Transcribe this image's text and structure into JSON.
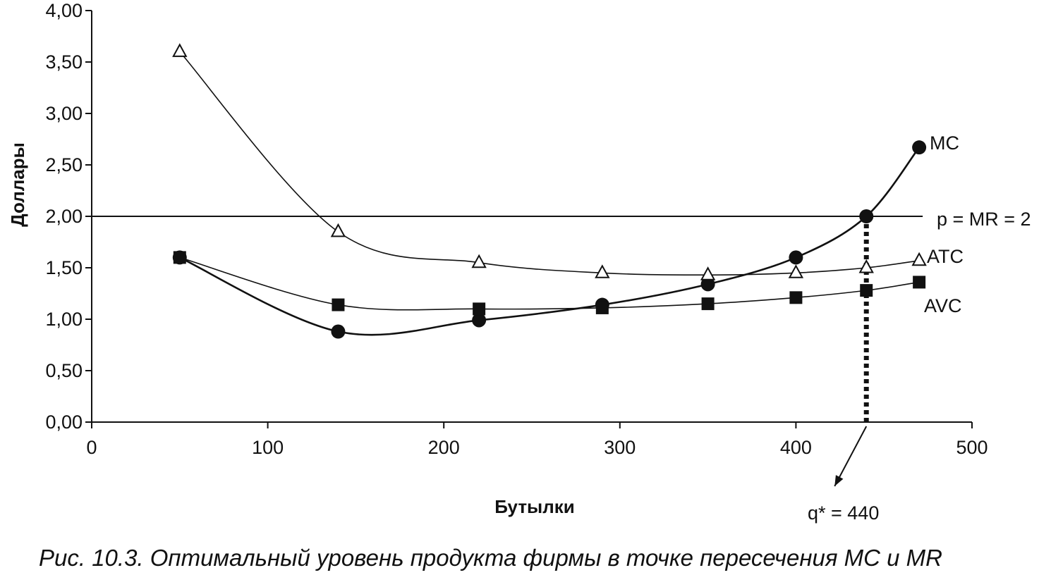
{
  "chart_data": {
    "type": "line",
    "xlabel": "Бутылки",
    "ylabel": "Доллары",
    "xlim": [
      0,
      500
    ],
    "ylim": [
      0,
      4
    ],
    "x_ticks": [
      "0",
      "100",
      "200",
      "300",
      "400",
      "500"
    ],
    "y_ticks": [
      "0,00",
      "0,50",
      "1,00",
      "1,50",
      "2,00",
      "2,50",
      "3,00",
      "3,50",
      "4,00"
    ],
    "grid": false,
    "legend": "none",
    "series": [
      {
        "name": "MC",
        "marker": "circle",
        "x": [
          50,
          140,
          220,
          290,
          350,
          400,
          440,
          470
        ],
        "y": [
          1.6,
          0.88,
          0.99,
          1.14,
          1.34,
          1.6,
          2.0,
          2.67
        ]
      },
      {
        "name": "ATC",
        "marker": "triangle",
        "x": [
          50,
          140,
          220,
          290,
          350,
          400,
          440,
          470
        ],
        "y": [
          3.6,
          1.85,
          1.55,
          1.45,
          1.43,
          1.45,
          1.5,
          1.57
        ]
      },
      {
        "name": "AVC",
        "marker": "square",
        "x": [
          50,
          140,
          220,
          290,
          350,
          400,
          440,
          470
        ],
        "y": [
          1.6,
          1.14,
          1.1,
          1.11,
          1.15,
          1.21,
          1.28,
          1.36
        ]
      }
    ],
    "hline": {
      "y": 2.0,
      "label": "p = MR = 2"
    },
    "vline": {
      "x": 440,
      "style": "dotted"
    },
    "annotations": [
      {
        "text": "q* = 440",
        "x": 440
      }
    ]
  },
  "caption": "Рис. 10.3. Оптимальный уровень продукта фирмы в точке пересечения MC и MR",
  "colors": {
    "ink": "#111111",
    "background": "#ffffff"
  }
}
